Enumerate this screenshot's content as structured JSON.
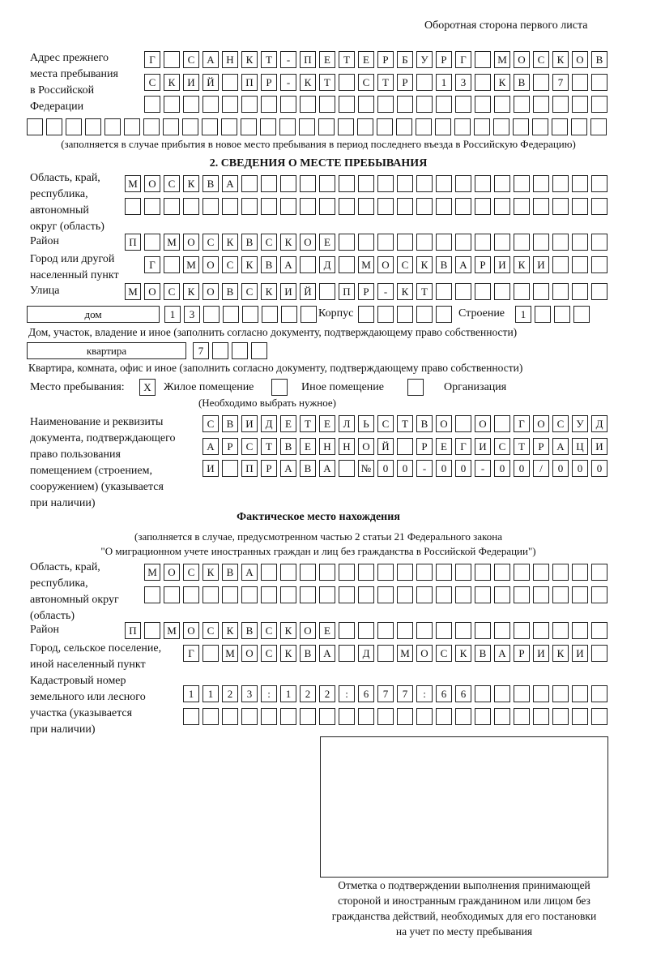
{
  "header": "Оборотная сторона первого листа",
  "prev_address": {
    "label": [
      "Адрес прежнего",
      "места пребывания",
      "в Российской",
      "Федерации"
    ],
    "rows": [
      "Г САНКТ-ПЕТЕРБУРГ МОСКОВ",
      "СКИЙ ПР-КТ СТР 13 КВ 7",
      "",
      ""
    ],
    "note": "(заполняется в случае прибытия в новое место пребывания в период последнего въезда в Российскую Федерацию)"
  },
  "section2": {
    "title": "2. СВЕДЕНИЯ О МЕСТЕ ПРЕБЫВАНИЯ",
    "region_label": [
      "Область, край,",
      "республика,",
      "автономный",
      "округ (область)"
    ],
    "region_rows": [
      "МОСКВА",
      ""
    ],
    "district_label": "Район",
    "district": "П МОСКВСКОЕ",
    "city_label": [
      "Город или другой",
      "населенный пункт"
    ],
    "city": "Г МОСКВА Д МОСКВАРИКИ",
    "street_label": "Улица",
    "street": "МОСКОВСКИЙ ПР-КТ",
    "house_type": "дом",
    "house": "13",
    "korpus_label": "Корпус",
    "korpus": "",
    "stroenie_label": "Строение",
    "stroenie": "1",
    "house_note": "Дом, участок, владение и иное (заполнить согласно документу, подтверждающему право собственности)",
    "flat_type": "квартира",
    "flat": "7",
    "flat_note": "Квартира, комната, офис и иное (заполнить согласно документу, подтверждающему право собственности)",
    "stay_label": "Место пребывания:",
    "options": [
      {
        "label": "Жилое помещение",
        "mark": "X"
      },
      {
        "label": "Иное помещение",
        "mark": ""
      },
      {
        "label": "Организация",
        "mark": ""
      }
    ],
    "choose_note": "(Необходимо выбрать нужное)",
    "doc_label": [
      "Наименование и реквизиты",
      "документа, подтверждающего",
      "право пользования",
      "помещением (строением,",
      "сооружением) (указывается",
      "при наличии)"
    ],
    "doc_rows": [
      "СВИДЕТЕЛЬСТВО О ГОСУД",
      "АРСТВЕННОЙ РЕГИСТРАЦИ",
      "И ПРАВА №00-00-00/000"
    ]
  },
  "actual": {
    "title": "Фактическое место нахождения",
    "note": [
      "(заполняется в случае, предусмотренном частью 2 статьи 21 Федерального закона",
      "\"О миграционном учете иностранных граждан и лиц без гражданства в Российской Федерации\")"
    ],
    "region_label": [
      "Область, край,",
      "республика,",
      "автономный округ",
      "(область)"
    ],
    "region_rows": [
      "МОСКВА",
      ""
    ],
    "district_label": "Район",
    "district": "П МОСКВСКОЕ",
    "city_label": [
      "Город, сельское поселение,",
      "иной населенный пункт"
    ],
    "city": "Г МОСКВА Д МОСКВАРИКИ",
    "cadastre_label": [
      "Кадастровый номер",
      "земельного или лесного",
      "участка (указывается",
      "при наличии)"
    ],
    "cadastre_rows": [
      "1123:122:677:66",
      ""
    ]
  },
  "stamp": {
    "caption": [
      "Отметка о подтверждении выполнения принимающей",
      "стороной и иностранным гражданином или лицом без",
      "гражданства действий, необходимых для его постановки",
      "на учет по месту пребывания"
    ]
  }
}
